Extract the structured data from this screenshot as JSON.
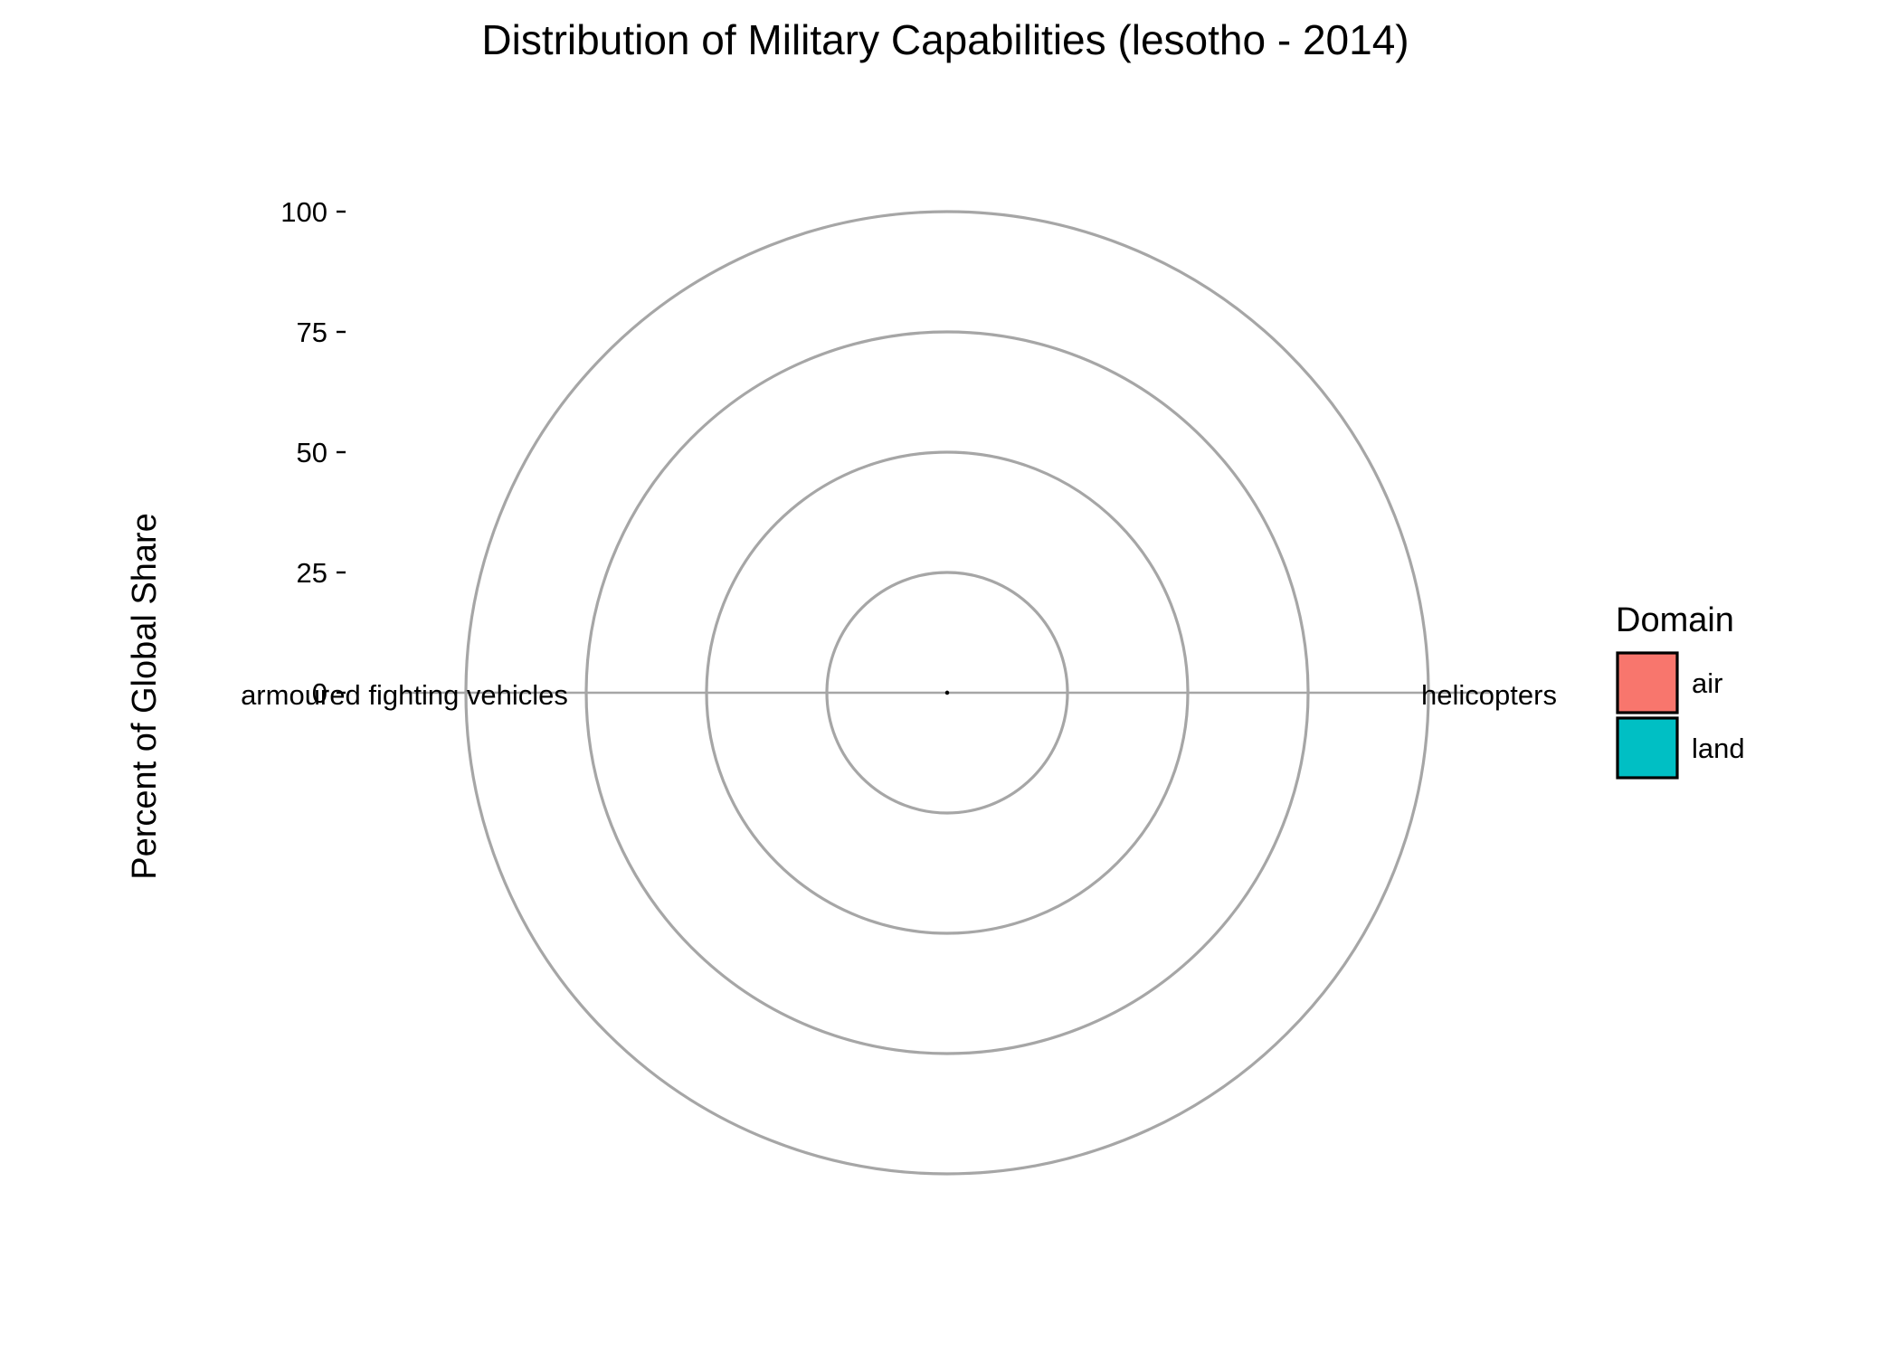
{
  "chart_data": {
    "type": "radar",
    "title": "Distribution of Military Capabilities (lesotho - 2014)",
    "ylabel": "Percent of Global Share",
    "ylim": [
      0,
      100
    ],
    "yticks": [
      0,
      25,
      50,
      75,
      100
    ],
    "categories": [
      "helicopters",
      "armoured fighting vehicles"
    ],
    "series": [
      {
        "name": "air",
        "values": [
          0,
          null
        ],
        "color": "#F8766D"
      },
      {
        "name": "land",
        "values": [
          null,
          0
        ],
        "color": "#00BFC4"
      }
    ],
    "grid": true,
    "legend": {
      "title": "Domain",
      "position": "right",
      "items": [
        {
          "label": "air",
          "color": "#F8766D"
        },
        {
          "label": "land",
          "color": "#00BFC4"
        }
      ]
    }
  }
}
